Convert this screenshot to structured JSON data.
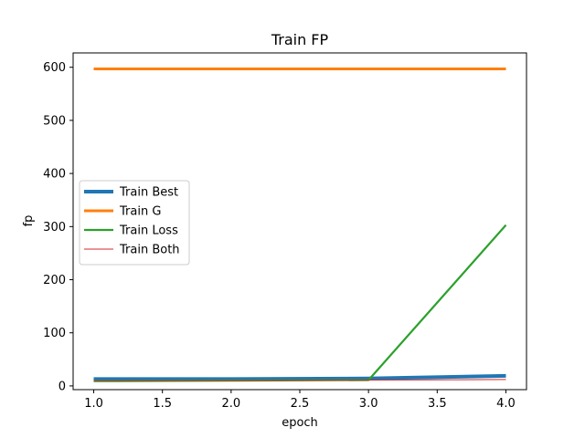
{
  "chart_data": {
    "type": "line",
    "title": "Train FP",
    "xlabel": "epoch",
    "ylabel": "fp",
    "xlim": [
      0.85,
      4.15
    ],
    "ylim": [
      -7,
      627
    ],
    "xticks": [
      1.0,
      1.5,
      2.0,
      2.5,
      3.0,
      3.5,
      4.0
    ],
    "xtick_labels": [
      "1.0",
      "1.5",
      "2.0",
      "2.5",
      "3.0",
      "3.5",
      "4.0"
    ],
    "yticks": [
      0,
      100,
      200,
      300,
      400,
      500,
      600
    ],
    "ytick_labels": [
      "0",
      "100",
      "200",
      "300",
      "400",
      "500",
      "600"
    ],
    "grid": false,
    "legend_position": "center-left",
    "series": [
      {
        "name": "Train Best",
        "color": "#1f77b4",
        "x": [
          1,
          2,
          3,
          4
        ],
        "values": [
          13,
          13,
          14,
          19
        ]
      },
      {
        "name": "Train G",
        "color": "#ff7f0e",
        "x": [
          1,
          2,
          3,
          4
        ],
        "values": [
          597,
          597,
          597,
          597
        ]
      },
      {
        "name": "Train Loss",
        "color": "#2ca02c",
        "x": [
          1,
          2,
          3,
          4
        ],
        "values": [
          9,
          10,
          11,
          303
        ]
      },
      {
        "name": "Train Both",
        "color": "#d62728",
        "x": [
          1,
          2,
          3,
          4
        ],
        "values": [
          10,
          10,
          11,
          12
        ]
      }
    ]
  }
}
